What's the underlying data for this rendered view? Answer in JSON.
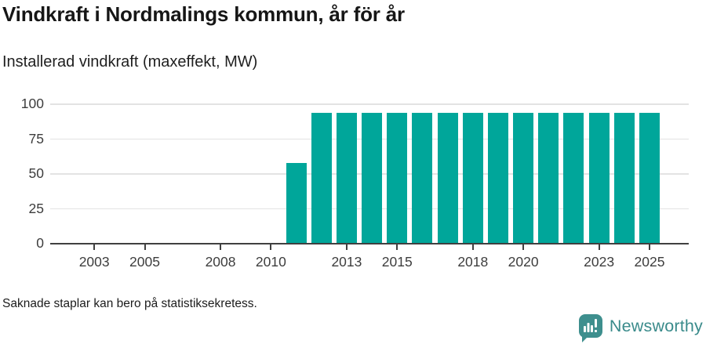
{
  "header": {
    "title": "Vindkraft i Nordmalings kommun, år för år",
    "subtitle": "Installerad vindkraft (maxeffekt, MW)"
  },
  "footer": {
    "note": "Saknade staplar kan bero på statistiksekretess.",
    "brand": "Newsworthy"
  },
  "colors": {
    "bar": "#00a69a",
    "grid": "#e3e3e3",
    "axis": "#404040",
    "tick_text": "#3d3d3d",
    "logo": "#3e8f8e",
    "logo_text": "#3a8b8b"
  },
  "chart_data": {
    "type": "bar",
    "title": "Vindkraft i Nordmalings kommun, år för år",
    "subtitle": "Installerad vindkraft (maxeffekt, MW)",
    "xlabel": "",
    "ylabel": "Installerad vindkraft (maxeffekt, MW)",
    "categories": [
      2002,
      2003,
      2004,
      2005,
      2006,
      2007,
      2008,
      2009,
      2010,
      2011,
      2012,
      2013,
      2014,
      2015,
      2016,
      2017,
      2018,
      2019,
      2020,
      2021,
      2022,
      2023,
      2024,
      2025
    ],
    "values": [
      null,
      null,
      null,
      null,
      null,
      null,
      null,
      null,
      null,
      58,
      94,
      94,
      94,
      94,
      94,
      94,
      94,
      94,
      94,
      94,
      94,
      94,
      94,
      94
    ],
    "x_tick_labels": [
      2003,
      2005,
      2008,
      2010,
      2013,
      2015,
      2018,
      2020,
      2023,
      2025
    ],
    "y_ticks": [
      0,
      25,
      50,
      75,
      100
    ],
    "ylim": [
      0,
      108
    ],
    "grid": true,
    "legend_position": "none",
    "annotation": "Saknade staplar kan bero på statistiksekretess."
  }
}
